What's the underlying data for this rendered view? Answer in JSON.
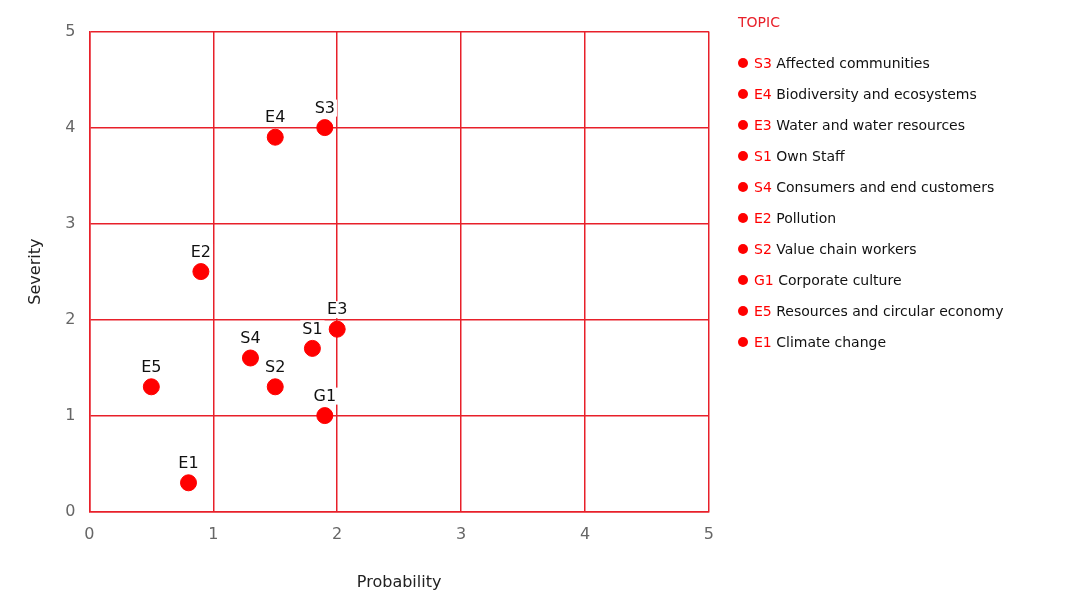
{
  "chart_data": {
    "type": "scatter",
    "xlabel": "Probability",
    "ylabel": "Severity",
    "legend_title": "TOPIC",
    "legend": "right",
    "grid": true,
    "marker": "circle",
    "xlim": [
      0,
      5
    ],
    "xticks": [
      0,
      1,
      2,
      3,
      4,
      5
    ],
    "ylim": [
      0,
      5
    ],
    "yticks": [
      0,
      1,
      2,
      3,
      4,
      5
    ],
    "series": [
      {
        "name": "S3 Affected communities",
        "color": "#ff0000",
        "x": [
          1.9
        ],
        "values": [
          4.0
        ]
      },
      {
        "name": "E4 Biodiversity and ecosystems",
        "color": "#ff0000",
        "x": [
          1.5
        ],
        "values": [
          3.9
        ]
      },
      {
        "name": "E3 Water and water resources",
        "color": "#ff0000",
        "x": [
          2.0
        ],
        "values": [
          1.9
        ]
      },
      {
        "name": "S1 Own Staff",
        "color": "#ff0000",
        "x": [
          1.8
        ],
        "values": [
          1.7
        ]
      },
      {
        "name": "S4 Consumers and end customers",
        "color": "#ff0000",
        "x": [
          1.3
        ],
        "values": [
          1.6
        ]
      },
      {
        "name": "E2 Pollution",
        "color": "#ff0000",
        "x": [
          0.9
        ],
        "values": [
          2.5
        ]
      },
      {
        "name": "S2 Value chain workers",
        "color": "#ff0000",
        "x": [
          1.5
        ],
        "values": [
          1.3
        ]
      },
      {
        "name": "G1 Corporate culture",
        "color": "#ff0000",
        "x": [
          1.9
        ],
        "values": [
          1.0
        ]
      },
      {
        "name": "E5 Resources and circular economy",
        "color": "#ff0000",
        "x": [
          0.5
        ],
        "values": [
          1.3
        ]
      },
      {
        "name": "E1 Climate change",
        "color": "#ff0000",
        "x": [
          0.8
        ],
        "values": [
          0.3
        ]
      }
    ],
    "annotations": [
      {
        "text": "S3",
        "x": 1.9,
        "y": 4.0
      },
      {
        "text": "E4",
        "x": 1.5,
        "y": 3.9
      },
      {
        "text": "E3",
        "x": 2.0,
        "y": 1.9
      },
      {
        "text": "S1",
        "x": 1.8,
        "y": 1.7
      },
      {
        "text": "S4",
        "x": 1.3,
        "y": 1.6
      },
      {
        "text": "E2",
        "x": 0.9,
        "y": 2.5
      },
      {
        "text": "S2",
        "x": 1.5,
        "y": 1.3
      },
      {
        "text": "G1",
        "x": 1.9,
        "y": 1.0
      },
      {
        "text": "E5",
        "x": 0.5,
        "y": 1.3
      },
      {
        "text": "E1",
        "x": 0.8,
        "y": 0.3
      }
    ]
  }
}
